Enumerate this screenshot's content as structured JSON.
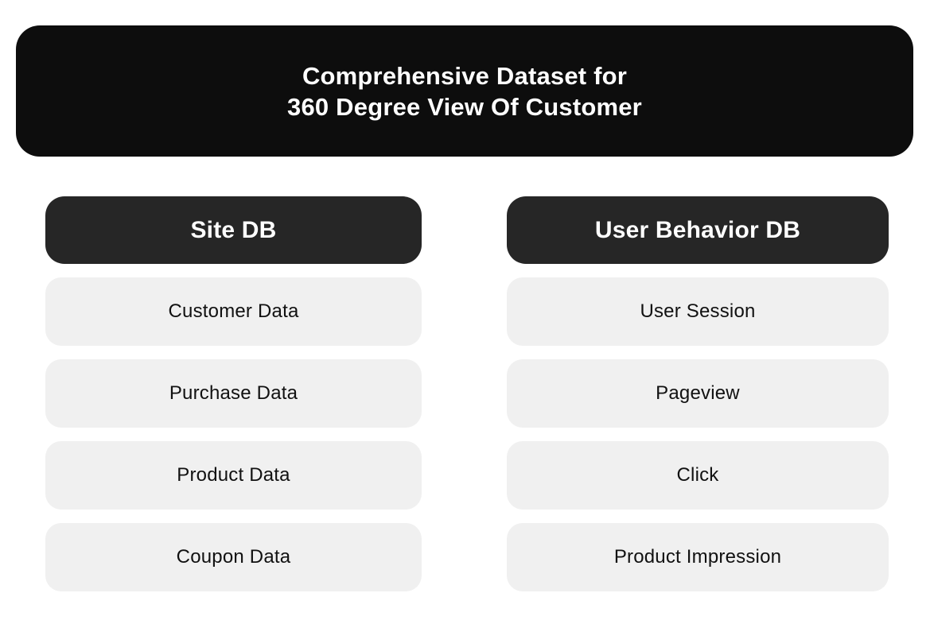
{
  "theme": {
    "page_bg": "#ffffff",
    "banner_bg": "#0d0d0d",
    "banner_text": "#ffffff",
    "header_bg": "#262626",
    "header_text": "#ffffff",
    "item_bg": "#f0f0f0",
    "item_text": "#111111"
  },
  "banner": {
    "title_line1": "Comprehensive Dataset for",
    "title_line2": "360 Degree View Of Customer"
  },
  "columns": [
    {
      "header": "Site DB",
      "items": [
        "Customer Data",
        "Purchase Data",
        "Product Data",
        "Coupon Data"
      ]
    },
    {
      "header": "User Behavior DB",
      "items": [
        "User Session",
        "Pageview",
        "Click",
        "Product Impression"
      ]
    }
  ]
}
